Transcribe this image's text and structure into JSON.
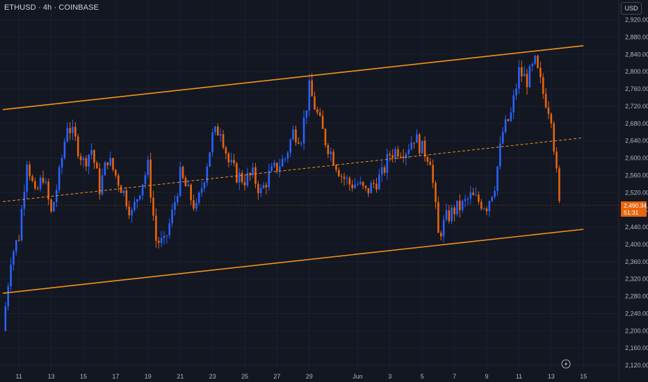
{
  "header": {
    "symbol_label": "ETHUSD · 4h · COINBASE",
    "currency": "USD"
  },
  "price_tag": {
    "price": "2,490.34",
    "countdown": "51:31"
  },
  "colors": {
    "background": "#131722",
    "up_candle": "#2962ff",
    "down_candle": "#e8640e",
    "channel_line": "#f7931a",
    "midline": "#f7931a"
  },
  "icons": {
    "replay": "lightning-icon"
  },
  "chart_data": {
    "type": "candlestick",
    "symbol": "ETHUSD",
    "timeframe": "4h",
    "exchange": "COINBASE",
    "y_axis": {
      "ticks": [
        "2,920.00",
        "2,880.00",
        "2,840.00",
        "2,800.00",
        "2,760.00",
        "2,720.00",
        "2,680.00",
        "2,640.00",
        "2,600.00",
        "2,560.00",
        "2,520.00",
        "2,480.00",
        "2,440.00",
        "2,400.00",
        "2,360.00",
        "2,320.00",
        "2,280.00",
        "2,240.00",
        "2,200.00",
        "2,160.00",
        "2,120.00"
      ],
      "range": [
        2110,
        2940
      ]
    },
    "x_axis": {
      "ticks": [
        "11",
        "13",
        "15",
        "17",
        "19",
        "21",
        "23",
        "25",
        "27",
        "29",
        "Jun",
        "3",
        "5",
        "7",
        "9",
        "11",
        "13",
        "15"
      ]
    },
    "last_price": 2490.34,
    "channel": {
      "upper": [
        {
          "x": "2024-05-10",
          "y": 2712
        },
        {
          "x": "2024-06-15",
          "y": 2860
        }
      ],
      "lower": [
        {
          "x": "2024-05-10",
          "y": 2287
        },
        {
          "x": "2024-06-15",
          "y": 2435
        }
      ],
      "mid": [
        {
          "x": "2024-05-10",
          "y": 2499
        },
        {
          "x": "2024-06-15",
          "y": 2647
        }
      ]
    },
    "close_path": [
      [
        "2024-05-10",
        2200
      ],
      [
        "2024-05-10T12",
        2370
      ],
      [
        "2024-05-11",
        2420
      ],
      [
        "2024-05-11T12",
        2600
      ],
      [
        "2024-05-12",
        2510
      ],
      [
        "2024-05-12T12",
        2560
      ],
      [
        "2024-05-13",
        2470
      ],
      [
        "2024-05-13T12",
        2560
      ],
      [
        "2024-05-14",
        2680
      ],
      [
        "2024-05-14T12",
        2640
      ],
      [
        "2024-05-15",
        2590
      ],
      [
        "2024-05-15T12",
        2620
      ],
      [
        "2024-05-16",
        2530
      ],
      [
        "2024-05-16T12",
        2600
      ],
      [
        "2024-05-17",
        2560
      ],
      [
        "2024-05-17T12",
        2520
      ],
      [
        "2024-05-18",
        2470
      ],
      [
        "2024-05-18T12",
        2530
      ],
      [
        "2024-05-19",
        2580
      ],
      [
        "2024-05-19T12",
        2410
      ],
      [
        "2024-05-20",
        2400
      ],
      [
        "2024-05-20T12",
        2470
      ],
      [
        "2024-05-21",
        2560
      ],
      [
        "2024-05-21T12",
        2520
      ],
      [
        "2024-05-22",
        2480
      ],
      [
        "2024-05-22T12",
        2560
      ],
      [
        "2024-05-23",
        2650
      ],
      [
        "2024-05-23T12",
        2670
      ],
      [
        "2024-05-24",
        2590
      ],
      [
        "2024-05-24T12",
        2560
      ],
      [
        "2024-05-25",
        2550
      ],
      [
        "2024-05-25T12",
        2560
      ],
      [
        "2024-05-26",
        2520
      ],
      [
        "2024-05-26T12",
        2560
      ],
      [
        "2024-05-27",
        2580
      ],
      [
        "2024-05-27T12",
        2600
      ],
      [
        "2024-05-28",
        2660
      ],
      [
        "2024-05-28T12",
        2650
      ],
      [
        "2024-05-29",
        2760
      ],
      [
        "2024-05-29T12",
        2700
      ],
      [
        "2024-05-30",
        2640
      ],
      [
        "2024-05-30T12",
        2600
      ],
      [
        "2024-05-31",
        2560
      ],
      [
        "2024-05-31T12",
        2540
      ],
      [
        "2024-06-01",
        2540
      ],
      [
        "2024-06-01T12",
        2520
      ],
      [
        "2024-06-02",
        2540
      ],
      [
        "2024-06-02T12",
        2560
      ],
      [
        "2024-06-03",
        2610
      ],
      [
        "2024-06-03T12",
        2620
      ],
      [
        "2024-06-04",
        2620
      ],
      [
        "2024-06-04T12",
        2650
      ],
      [
        "2024-06-05",
        2620
      ],
      [
        "2024-06-05T12",
        2600
      ],
      [
        "2024-06-06",
        2420
      ],
      [
        "2024-06-06T12",
        2460
      ],
      [
        "2024-06-07",
        2480
      ],
      [
        "2024-06-07T12",
        2490
      ],
      [
        "2024-06-08",
        2510
      ],
      [
        "2024-06-08T12",
        2500
      ],
      [
        "2024-06-09",
        2490
      ],
      [
        "2024-06-09T12",
        2540
      ],
      [
        "2024-06-10",
        2660
      ],
      [
        "2024-06-10T12",
        2700
      ],
      [
        "2024-06-11",
        2800
      ],
      [
        "2024-06-11T12",
        2780
      ],
      [
        "2024-06-12",
        2820
      ],
      [
        "2024-06-12T12",
        2750
      ],
      [
        "2024-06-13",
        2700
      ],
      [
        "2024-06-13T12",
        2490
      ]
    ]
  }
}
